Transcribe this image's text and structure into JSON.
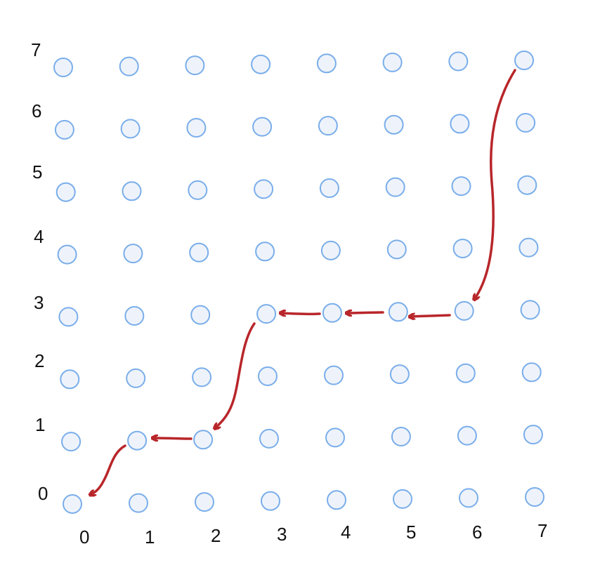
{
  "grid": {
    "size": 8,
    "row_labels": [
      "7",
      "6",
      "5",
      "4",
      "3",
      "2",
      "1",
      "0"
    ],
    "col_labels": [
      "0",
      "1",
      "2",
      "3",
      "4",
      "5",
      "6",
      "7"
    ]
  },
  "path": {
    "nodes": [
      [
        7,
        7
      ],
      [
        6,
        3
      ],
      [
        5,
        3
      ],
      [
        4,
        3
      ],
      [
        3,
        3
      ],
      [
        2,
        1
      ],
      [
        1,
        1
      ],
      [
        0,
        0
      ]
    ]
  },
  "colors": {
    "node_fill": "#eef3fb",
    "node_stroke": "#7aaeea",
    "arrow": "#b8262a",
    "label": "#111111"
  }
}
